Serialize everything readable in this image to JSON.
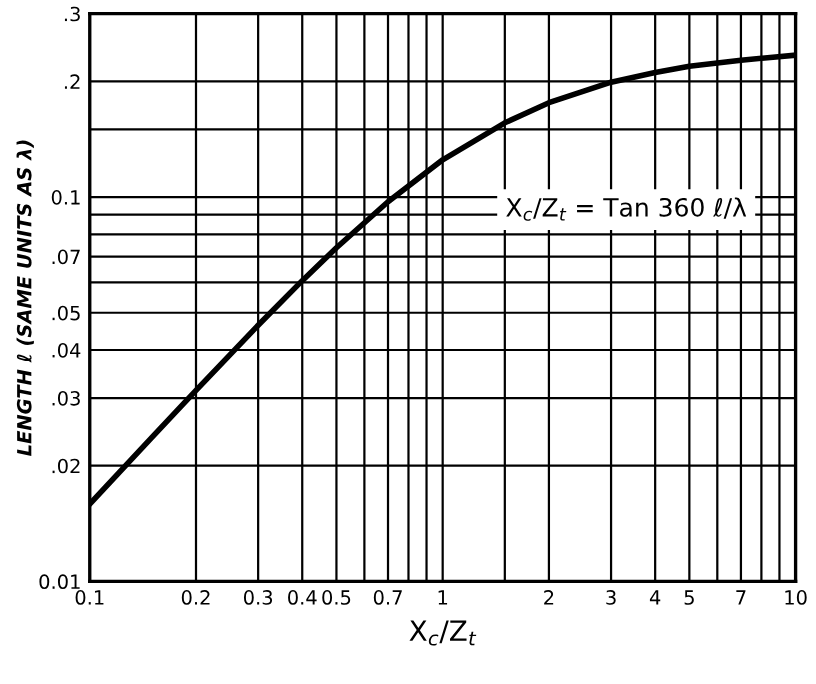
{
  "chart_data": {
    "type": "line",
    "xlabel": "X$_{c}$/Z$_{t}$",
    "ylabel": "LENGTH ℓ (SAME UNITS AS λ)",
    "x": [
      0.1,
      0.15,
      0.2,
      0.3,
      0.4,
      0.5,
      0.7,
      1,
      1.5,
      2,
      3,
      4,
      5,
      7,
      10
    ],
    "series": [
      {
        "color": "#000000",
        "values": [
          0.0159,
          0.0237,
          0.0314,
          0.0464,
          0.0606,
          0.0738,
          0.0972,
          0.125,
          0.156,
          0.176,
          0.199,
          0.211,
          0.219,
          0.227,
          0.234
        ]
      }
    ],
    "log": "xy",
    "xlim": [
      0.1,
      10
    ],
    "ylim": [
      0.01,
      0.3
    ],
    "xticks": [
      0.1,
      0.2,
      0.3,
      0.4,
      0.5,
      {
        "value": 0.6,
        "label": null
      },
      0.7,
      {
        "value": 0.8,
        "label": null
      },
      {
        "value": 0.9,
        "label": null
      },
      1,
      {
        "value": 1.5,
        "label": null
      },
      2,
      3,
      4,
      5,
      {
        "value": 6,
        "label": null
      },
      7,
      {
        "value": 8,
        "label": null
      },
      {
        "value": 9,
        "label": null
      },
      10
    ],
    "yticks": [
      0.01,
      {
        "value": 0.02,
        "label": ".02"
      },
      {
        "value": 0.03,
        "label": ".03"
      },
      {
        "value": 0.04,
        "label": ".04"
      },
      {
        "value": 0.05,
        "label": ".05"
      },
      {
        "value": 0.06,
        "label": null
      },
      {
        "value": 0.07,
        "label": ".07"
      },
      {
        "value": 0.08,
        "label": null
      },
      {
        "value": 0.09,
        "label": null
      },
      0.1,
      {
        "value": 0.15,
        "label": null
      },
      {
        "value": 0.2,
        "label": ".2"
      },
      {
        "value": 0.3,
        "label": ".3"
      }
    ],
    "grid": true,
    "marker": "none",
    "line_style": "solid",
    "annotations": [
      "X$_{c}$/Z$_{t}$ = Tan 360 ℓ/λ"
    ]
  }
}
